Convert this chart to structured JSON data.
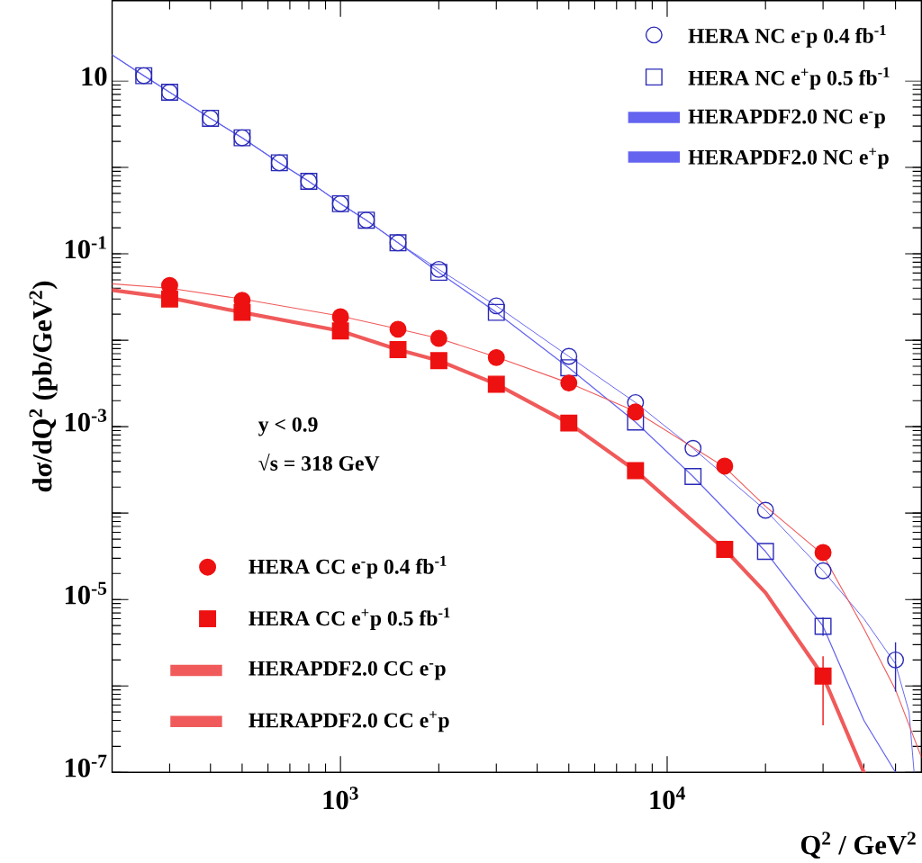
{
  "chart_data": {
    "type": "scatter",
    "log": "xy",
    "xlabel": "Q$^{2}$ / GeV$^{2}$",
    "ylabel": "dσ/dQ$^{2}$ (pb/GeV$^{2}$)",
    "xlim": [
      200,
      60000
    ],
    "ylim": [
      1e-07,
      85
    ],
    "xticks": [
      {
        "value": 1000,
        "label": "10$^{3}$"
      },
      {
        "value": 10000,
        "label": "10$^{4}$"
      }
    ],
    "yticks": [
      {
        "value": 1e-07,
        "label": "10$^{-7}$"
      },
      {
        "value": 1e-06,
        "label": null
      },
      {
        "value": 1e-05,
        "label": "10$^{-5}$"
      },
      {
        "value": 0.0001,
        "label": null
      },
      {
        "value": 0.001,
        "label": "10$^{-3}$"
      },
      {
        "value": 0.01,
        "label": null
      },
      {
        "value": 0.1,
        "label": "10$^{-1}$"
      },
      {
        "value": 1,
        "label": null
      },
      10
    ],
    "legend": "top right",
    "annotations": [
      "y < 0.9",
      "√s = 318 GeV"
    ],
    "series": [
      {
        "name": "HERA NC e$^{-}$p 0.4 fb$^{-1}$",
        "marker": "circle",
        "color": "#2a2ab8",
        "x": [
          250,
          300,
          400,
          500,
          650,
          800,
          1000,
          1200,
          1500,
          2000,
          3000,
          5000,
          8000,
          12000,
          20000,
          30000,
          50000
        ],
        "values": [
          11.5,
          7.4,
          3.7,
          2.2,
          1.13,
          0.69,
          0.38,
          0.245,
          0.134,
          0.066,
          0.025,
          0.0065,
          0.0019,
          0.00056,
          0.000108,
          2.15e-05,
          2e-06
        ],
        "errors": [
          null,
          null,
          null,
          null,
          null,
          null,
          null,
          null,
          null,
          null,
          null,
          null,
          null,
          null,
          null,
          null,
          [
            8.6e-07,
            3.2e-06
          ]
        ]
      },
      {
        "name": "HERA NC e$^{+}$p 0.5 fb$^{-1}$",
        "marker": "square",
        "color": "#2a2ab8",
        "x": [
          250,
          300,
          400,
          500,
          650,
          800,
          1000,
          1200,
          1500,
          2000,
          3000,
          5000,
          8000,
          12000,
          20000,
          30000
        ],
        "values": [
          11.5,
          7.4,
          3.7,
          2.2,
          1.13,
          0.69,
          0.38,
          0.245,
          0.134,
          0.061,
          0.021,
          0.0048,
          0.00113,
          0.000265,
          3.6e-05,
          4.9e-06
        ],
        "errors": [
          null,
          null,
          null,
          null,
          null,
          null,
          null,
          null,
          null,
          null,
          null,
          null,
          null,
          null,
          null,
          [
            3.8e-06,
            6.2e-06
          ]
        ]
      },
      {
        "name": "HERAPDF2.0 NC e$^{-}$p",
        "type": "line",
        "color": "#6464f0",
        "x": [
          200,
          250,
          300,
          400,
          500,
          650,
          800,
          1000,
          1200,
          1500,
          2000,
          3000,
          5000,
          8000,
          12000,
          20000,
          30000,
          40000,
          50000,
          55000,
          57000
        ],
        "values": [
          20,
          11.5,
          7.4,
          3.7,
          2.2,
          1.13,
          0.69,
          0.38,
          0.245,
          0.134,
          0.066,
          0.025,
          0.0065,
          0.0019,
          0.00056,
          0.000108,
          2.15e-05,
          6e-06,
          1.8e-06,
          5e-07,
          1e-07
        ]
      },
      {
        "name": "HERAPDF2.0 NC e$^{+}$p",
        "type": "line",
        "color": "#6464f0",
        "x": [
          200,
          250,
          300,
          400,
          500,
          650,
          800,
          1000,
          1200,
          1500,
          2000,
          3000,
          5000,
          8000,
          12000,
          20000,
          30000,
          40000,
          50000
        ],
        "values": [
          20,
          11.5,
          7.4,
          3.7,
          2.2,
          1.13,
          0.69,
          0.38,
          0.245,
          0.134,
          0.061,
          0.021,
          0.0048,
          0.00113,
          0.000265,
          3.6e-05,
          4.9e-06,
          4e-07,
          1e-07
        ]
      },
      {
        "name": "HERA CC e$^{-}$p 0.4 fb$^{-1}$",
        "marker": "circle",
        "color": "#ee1111",
        "x": [
          300,
          500,
          1000,
          1500,
          2000,
          3000,
          5000,
          8000,
          15000,
          30000
        ],
        "values": [
          0.043,
          0.029,
          0.0187,
          0.0134,
          0.0105,
          0.0063,
          0.0032,
          0.00148,
          0.00035,
          3.5e-05
        ]
      },
      {
        "name": "HERA CC e$^{+}$p 0.5 fb$^{-1}$",
        "marker": "square",
        "color": "#ee1111",
        "x": [
          300,
          500,
          1000,
          1500,
          2000,
          3000,
          5000,
          8000,
          15000,
          30000
        ],
        "values": [
          0.03,
          0.021,
          0.0128,
          0.0078,
          0.0058,
          0.0031,
          0.0011,
          0.00031,
          3.8e-05,
          1.3e-06
        ],
        "errors": [
          null,
          null,
          null,
          null,
          null,
          null,
          null,
          null,
          null,
          [
            3.5e-07,
            2.2e-06
          ]
        ]
      },
      {
        "name": "HERAPDF2.0 CC e$^{-}$p",
        "type": "line",
        "color": "#f05a5a",
        "x": [
          200,
          300,
          500,
          1000,
          1500,
          2000,
          3000,
          5000,
          8000,
          15000,
          20000,
          30000,
          40000,
          50000,
          60000
        ],
        "values": [
          0.045,
          0.04,
          0.03,
          0.019,
          0.0135,
          0.0105,
          0.0064,
          0.0032,
          0.0015,
          0.00034,
          0.00012,
          3.3e-05,
          4.6e-06,
          9e-07,
          1.5e-07
        ]
      },
      {
        "name": "HERAPDF2.0 CC e$^{+}$p",
        "type": "line",
        "color": "#f05a5a",
        "x": [
          200,
          300,
          500,
          1000,
          1500,
          2000,
          3000,
          5000,
          8000,
          15000,
          20000,
          30000,
          40000
        ],
        "values": [
          0.038,
          0.031,
          0.021,
          0.0128,
          0.0078,
          0.0058,
          0.0031,
          0.0011,
          0.00031,
          3.8e-05,
          1.2e-05,
          1.3e-06,
          1e-07
        ]
      }
    ]
  }
}
